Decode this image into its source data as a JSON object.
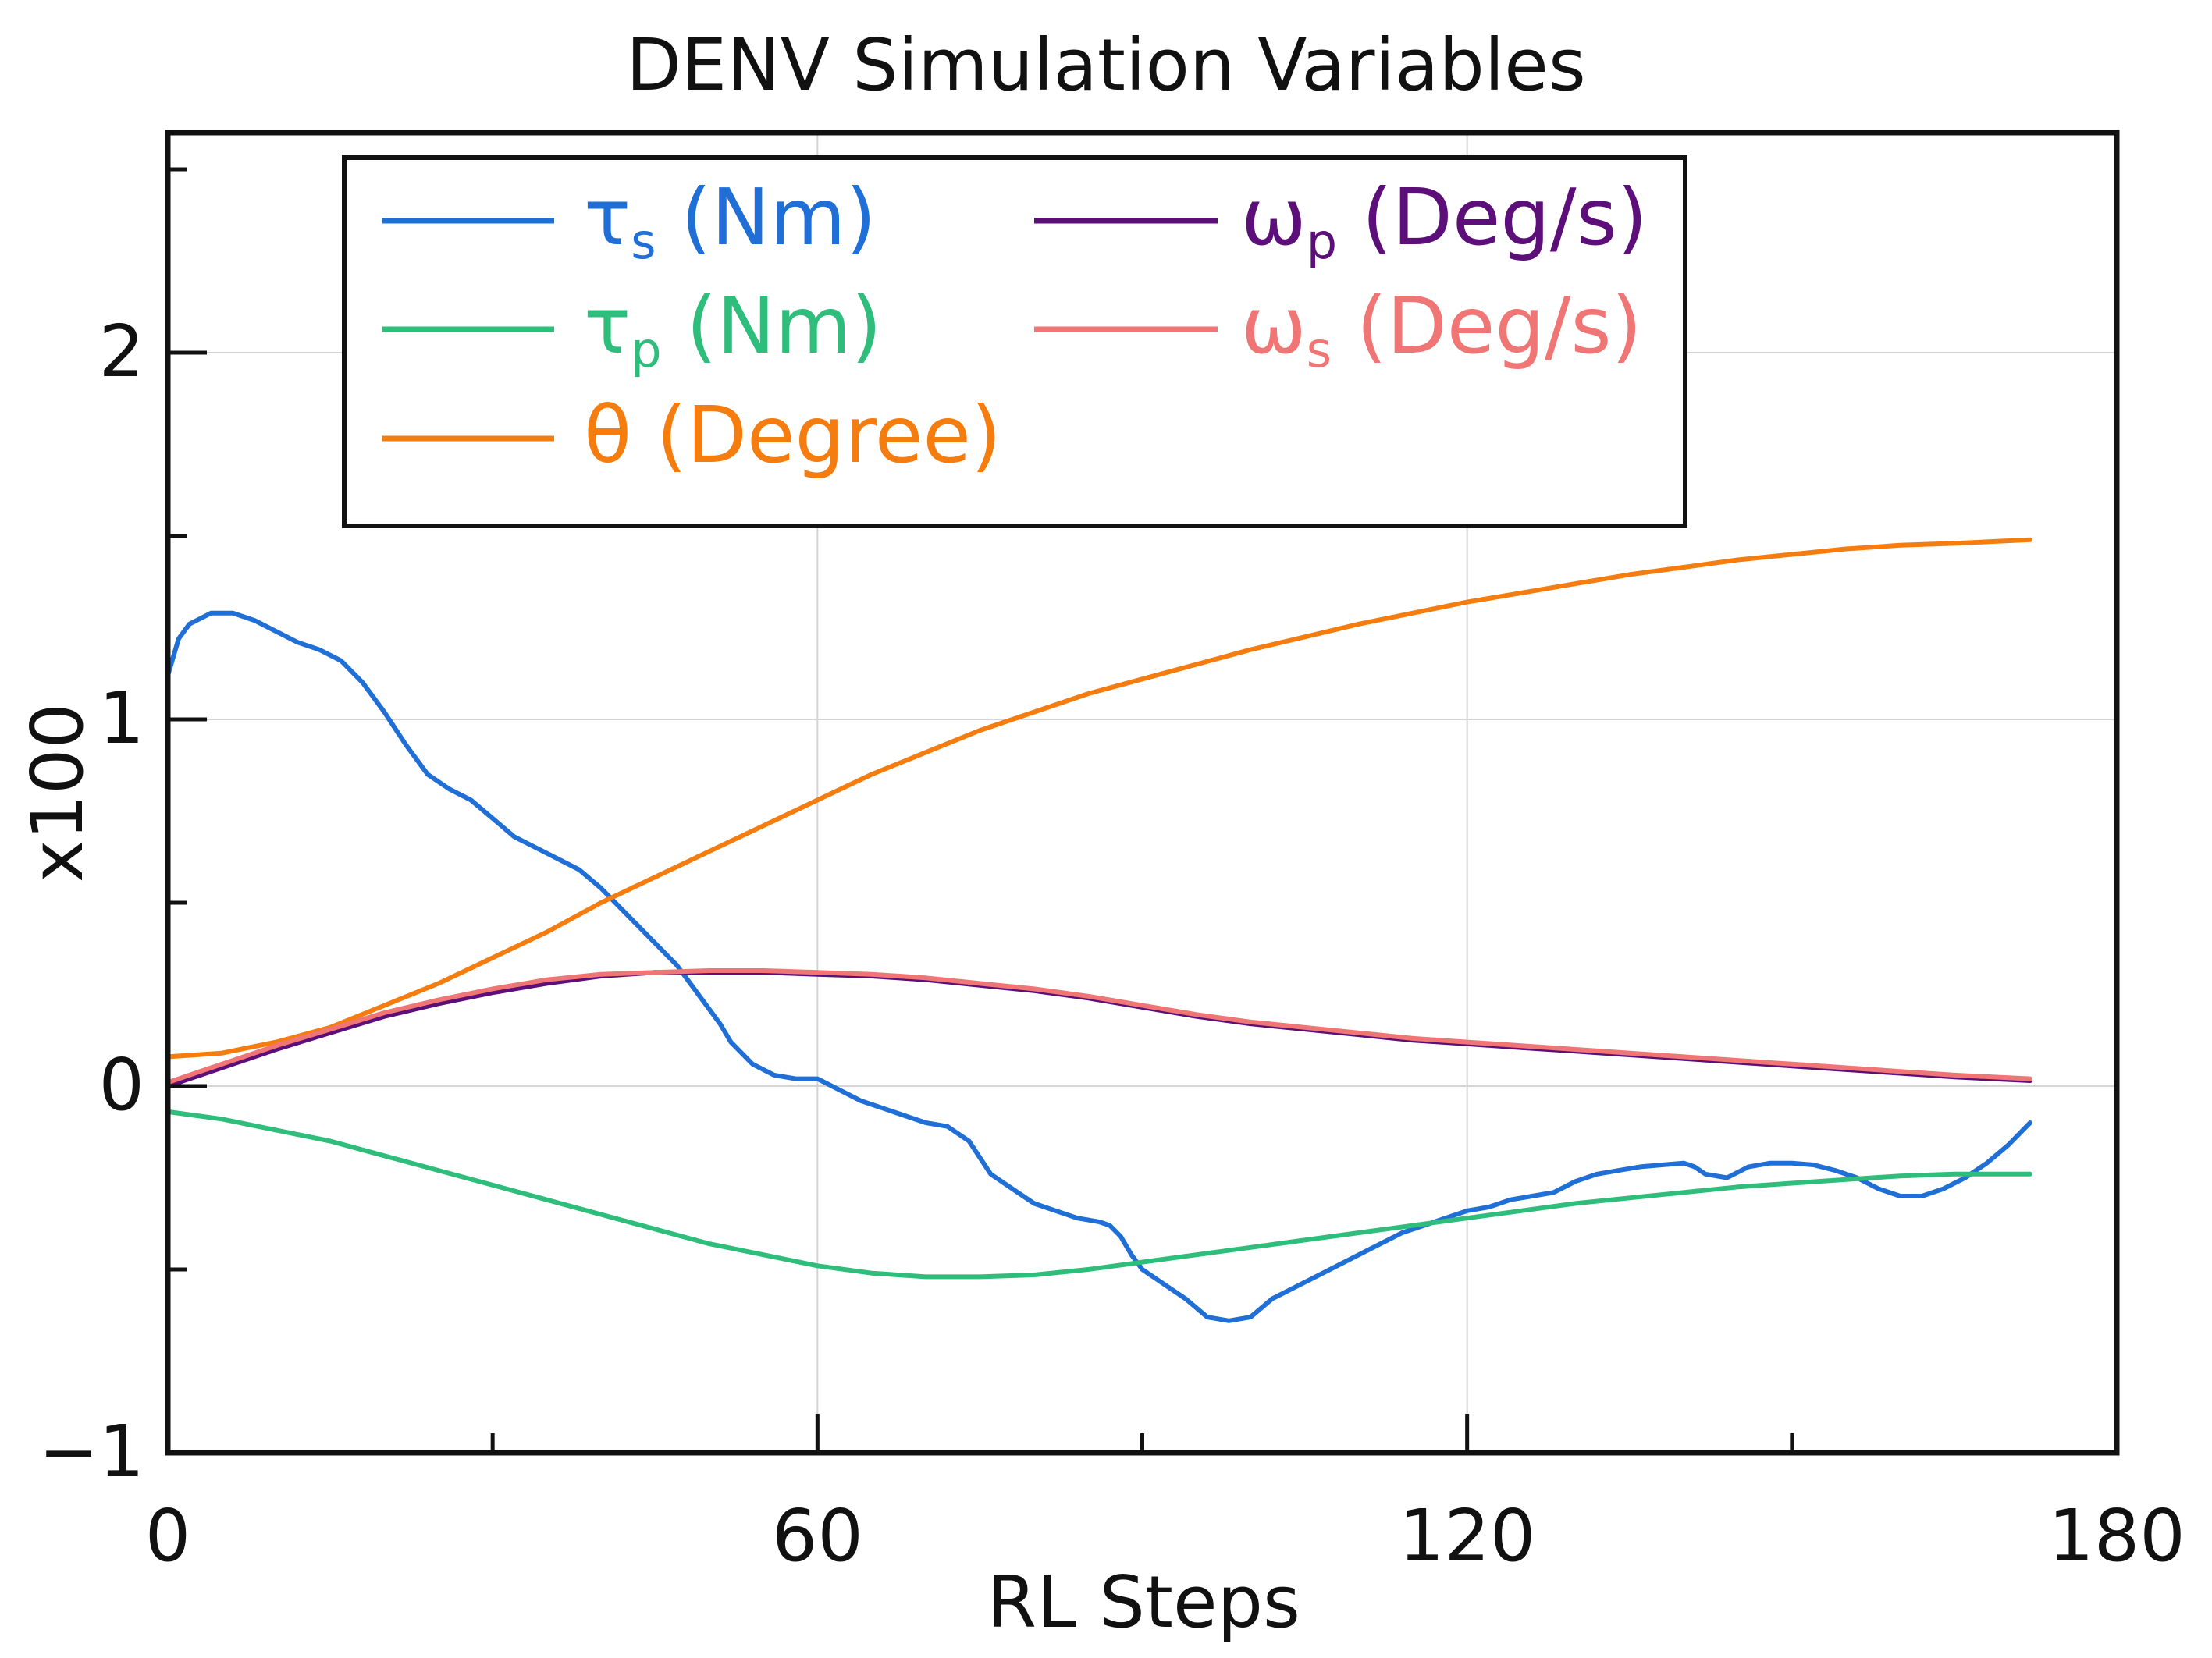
{
  "chart_data": {
    "type": "line",
    "title": "DENV Simulation Variables",
    "xlabel": "RL Steps",
    "ylabel": "x100",
    "xlim": [
      0,
      180
    ],
    "ylim": [
      -1,
      2.6
    ],
    "xticks": [
      0,
      60,
      120,
      180
    ],
    "xtick_labels": [
      "0",
      "60",
      "120",
      "180"
    ],
    "x_minor_ticks": [
      30,
      90,
      150
    ],
    "yticks": [
      -1,
      0,
      1,
      2
    ],
    "ytick_labels": [
      "−1",
      "0",
      "1",
      "2"
    ],
    "y_minor_ticks": [
      -0.5,
      0.5,
      1.5,
      2.5
    ],
    "grid": true,
    "legend_position": "top-left",
    "series": [
      {
        "name": "τs (Nm)",
        "base": "τ",
        "sub": "s",
        "unit": "(Nm)",
        "color": "#1f6fd6",
        "x": [
          0,
          1,
          2,
          4,
          6,
          8,
          10,
          12,
          14,
          16,
          18,
          20,
          22,
          24,
          26,
          28,
          30,
          32,
          34,
          36,
          38,
          40,
          42,
          44,
          46,
          47,
          48,
          49,
          50,
          51,
          52,
          54,
          56,
          58,
          60,
          62,
          64,
          65,
          66,
          68,
          70,
          72,
          74,
          76,
          78,
          79,
          80,
          82,
          84,
          86,
          87,
          88,
          89,
          90,
          92,
          94,
          96,
          98,
          100,
          102,
          104,
          106,
          108,
          110,
          112,
          114,
          116,
          118,
          120,
          122,
          124,
          126,
          128,
          130,
          132,
          134,
          136,
          138,
          140,
          141,
          142,
          144,
          146,
          148,
          150,
          152,
          154,
          156,
          158,
          160,
          162,
          164,
          166,
          168,
          170,
          172
        ],
        "y": [
          1.12,
          1.22,
          1.26,
          1.29,
          1.29,
          1.27,
          1.24,
          1.21,
          1.19,
          1.16,
          1.1,
          1.02,
          0.93,
          0.85,
          0.81,
          0.78,
          0.73,
          0.68,
          0.65,
          0.62,
          0.59,
          0.54,
          0.48,
          0.42,
          0.36,
          0.33,
          0.29,
          0.25,
          0.21,
          0.17,
          0.12,
          0.06,
          0.03,
          0.02,
          0.02,
          -0.01,
          -0.04,
          -0.05,
          -0.06,
          -0.08,
          -0.1,
          -0.11,
          -0.15,
          -0.24,
          -0.28,
          -0.3,
          -0.32,
          -0.34,
          -0.36,
          -0.37,
          -0.38,
          -0.41,
          -0.46,
          -0.5,
          -0.54,
          -0.58,
          -0.63,
          -0.64,
          -0.63,
          -0.58,
          -0.55,
          -0.52,
          -0.49,
          -0.46,
          -0.43,
          -0.4,
          -0.38,
          -0.36,
          -0.34,
          -0.33,
          -0.31,
          -0.3,
          -0.29,
          -0.26,
          -0.24,
          -0.23,
          -0.22,
          -0.215,
          -0.21,
          -0.22,
          -0.24,
          -0.25,
          -0.22,
          -0.21,
          -0.21,
          -0.215,
          -0.23,
          -0.25,
          -0.28,
          -0.3,
          -0.3,
          -0.28,
          -0.25,
          -0.21,
          -0.16,
          -0.1
        ]
      },
      {
        "name": "τp (Nm)",
        "base": "τ",
        "sub": "p",
        "unit": "(Nm)",
        "color": "#2ebd7b",
        "x": [
          0,
          5,
          10,
          15,
          20,
          25,
          30,
          35,
          40,
          45,
          50,
          55,
          60,
          65,
          70,
          75,
          80,
          85,
          90,
          95,
          100,
          105,
          110,
          115,
          120,
          125,
          130,
          135,
          140,
          145,
          150,
          155,
          160,
          165,
          172
        ],
        "y": [
          -0.07,
          -0.09,
          -0.12,
          -0.15,
          -0.19,
          -0.23,
          -0.27,
          -0.31,
          -0.35,
          -0.39,
          -0.43,
          -0.46,
          -0.49,
          -0.51,
          -0.52,
          -0.52,
          -0.515,
          -0.5,
          -0.48,
          -0.46,
          -0.44,
          -0.42,
          -0.4,
          -0.38,
          -0.36,
          -0.34,
          -0.32,
          -0.305,
          -0.29,
          -0.275,
          -0.265,
          -0.255,
          -0.245,
          -0.24,
          -0.24
        ]
      },
      {
        "name": "θ (Degree)",
        "base": "θ",
        "sub": "",
        "unit": "(Degree)",
        "color": "#f57c0f",
        "x": [
          0,
          5,
          10,
          15,
          20,
          25,
          30,
          35,
          40,
          45,
          50,
          55,
          60,
          65,
          70,
          75,
          80,
          85,
          90,
          95,
          100,
          105,
          110,
          115,
          120,
          125,
          130,
          135,
          140,
          145,
          150,
          155,
          160,
          165,
          172
        ],
        "y": [
          0.08,
          0.09,
          0.12,
          0.16,
          0.22,
          0.28,
          0.35,
          0.42,
          0.5,
          0.57,
          0.64,
          0.71,
          0.78,
          0.85,
          0.91,
          0.97,
          1.02,
          1.07,
          1.11,
          1.15,
          1.19,
          1.225,
          1.26,
          1.29,
          1.32,
          1.345,
          1.37,
          1.395,
          1.415,
          1.435,
          1.45,
          1.465,
          1.475,
          1.48,
          1.49
        ]
      },
      {
        "name": "ωp (Deg/s)",
        "base": "ω",
        "sub": "p",
        "unit": "(Deg/s)",
        "color": "#5c0f78",
        "x": [
          0,
          5,
          10,
          15,
          20,
          25,
          30,
          35,
          40,
          45,
          50,
          55,
          60,
          65,
          70,
          75,
          80,
          85,
          90,
          95,
          100,
          105,
          110,
          115,
          120,
          125,
          130,
          135,
          140,
          145,
          150,
          155,
          160,
          165,
          172
        ],
        "y": [
          0.0,
          0.05,
          0.1,
          0.145,
          0.19,
          0.225,
          0.255,
          0.28,
          0.3,
          0.31,
          0.31,
          0.31,
          0.305,
          0.3,
          0.29,
          0.275,
          0.26,
          0.24,
          0.215,
          0.19,
          0.17,
          0.155,
          0.14,
          0.125,
          0.115,
          0.105,
          0.095,
          0.085,
          0.075,
          0.065,
          0.055,
          0.045,
          0.035,
          0.025,
          0.015
        ]
      },
      {
        "name": "ωs (Deg/s)",
        "base": "ω",
        "sub": "s",
        "unit": "(Deg/s)",
        "color": "#f07575",
        "x": [
          0,
          5,
          10,
          15,
          20,
          25,
          30,
          35,
          40,
          45,
          50,
          55,
          60,
          65,
          70,
          75,
          80,
          85,
          90,
          95,
          100,
          105,
          110,
          115,
          120,
          125,
          130,
          135,
          140,
          145,
          150,
          155,
          160,
          165,
          172
        ],
        "y": [
          0.01,
          0.06,
          0.11,
          0.155,
          0.2,
          0.235,
          0.265,
          0.29,
          0.305,
          0.31,
          0.315,
          0.315,
          0.31,
          0.305,
          0.295,
          0.28,
          0.265,
          0.245,
          0.22,
          0.195,
          0.175,
          0.16,
          0.145,
          0.13,
          0.12,
          0.11,
          0.1,
          0.09,
          0.08,
          0.07,
          0.06,
          0.05,
          0.04,
          0.03,
          0.02
        ]
      }
    ],
    "legend_order": [
      0,
      3,
      1,
      4,
      2
    ]
  }
}
